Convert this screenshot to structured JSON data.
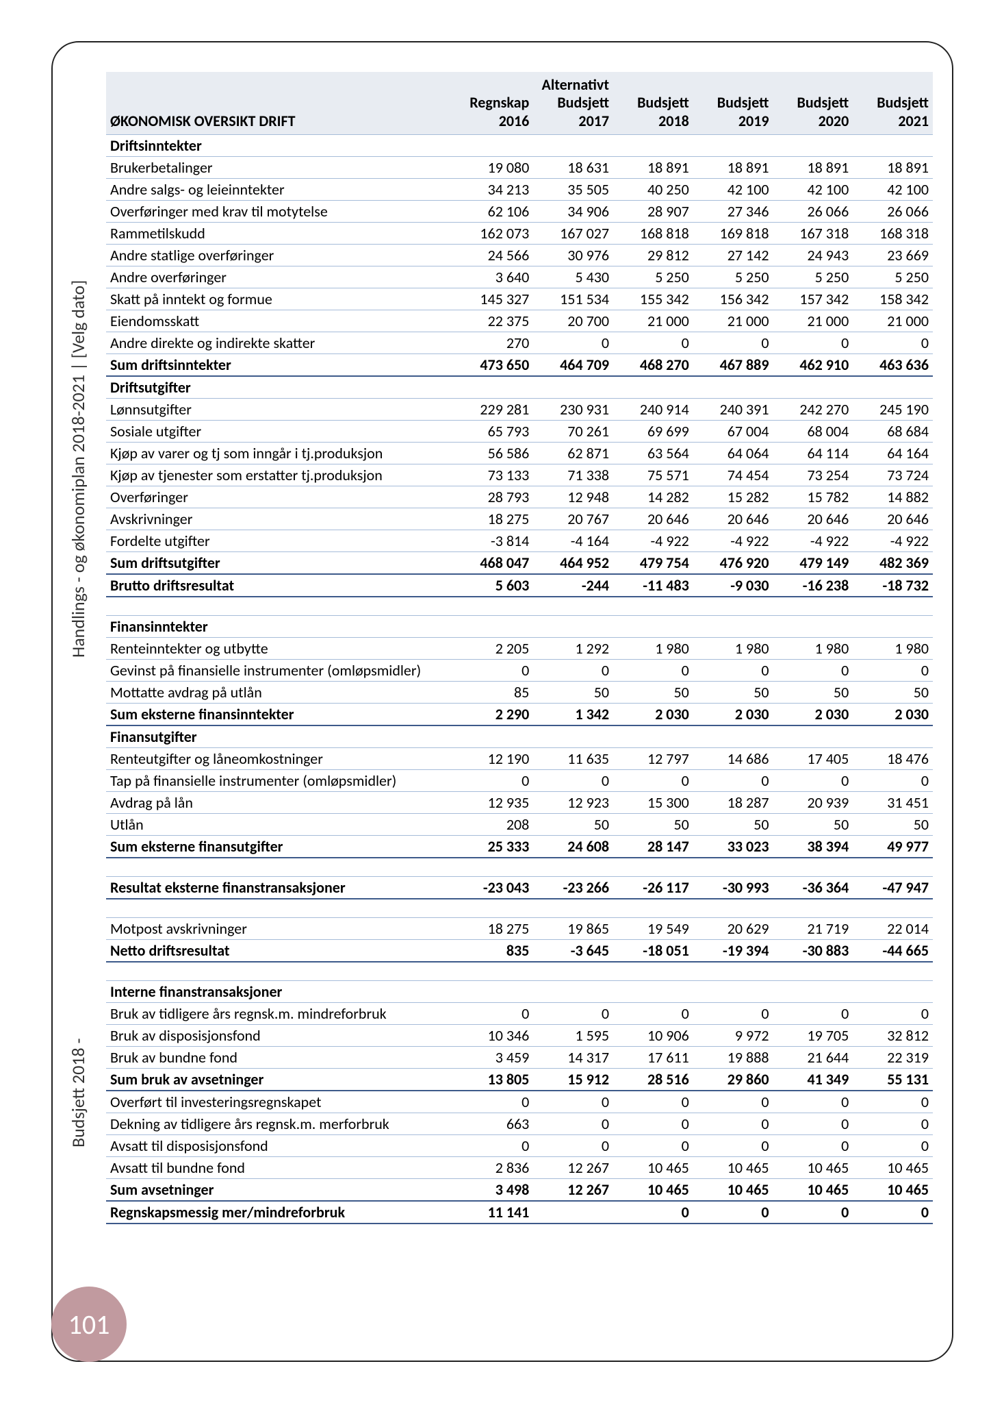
{
  "page_number": "101",
  "sidebar_text_top": "Handlings - og økonomiplan 2018-2021 |  [Velg dato]",
  "sidebar_text_bottom": "Budsjett 2018 -",
  "table": {
    "title": "ØKONOMISK OVERSIKT DRIFT",
    "columns": [
      "Regnskap\n2016",
      "Alternativt\nBudsjett\n2017",
      "Budsjett\n2018",
      "Budsjett\n2019",
      "Budsjett\n2020",
      "Budsjett\n2021"
    ],
    "col_widths_pct": [
      42,
      9.66,
      9.66,
      9.66,
      9.66,
      9.66,
      9.66
    ],
    "header_bg": "#e8ecf2",
    "grid_color": "#a6bcd9",
    "bold_border_color": "#3d5a8a",
    "font_size_pt": 11,
    "rows": [
      {
        "label": "Driftsinntekter",
        "v": [
          "",
          "",
          "",
          "",
          "",
          ""
        ],
        "bold": true
      },
      {
        "label": "Brukerbetalinger",
        "v": [
          "19 080",
          "18 631",
          "18 891",
          "18 891",
          "18 891",
          "18 891"
        ]
      },
      {
        "label": "Andre salgs- og leieinntekter",
        "v": [
          "34 213",
          "35 505",
          "40 250",
          "42 100",
          "42 100",
          "42 100"
        ]
      },
      {
        "label": "Overføringer med krav til motytelse",
        "v": [
          "62 106",
          "34 906",
          "28 907",
          "27 346",
          "26 066",
          "26 066"
        ]
      },
      {
        "label": "Rammetilskudd",
        "v": [
          "162 073",
          "167 027",
          "168 818",
          "169 818",
          "167 318",
          "168 318"
        ]
      },
      {
        "label": "Andre statlige overføringer",
        "v": [
          "24 566",
          "30 976",
          "29 812",
          "27 142",
          "24 943",
          "23 669"
        ]
      },
      {
        "label": "Andre overføringer",
        "v": [
          "3 640",
          "5 430",
          "5 250",
          "5 250",
          "5 250",
          "5 250"
        ]
      },
      {
        "label": "Skatt på inntekt og formue",
        "v": [
          "145 327",
          "151 534",
          "155 342",
          "156 342",
          "157 342",
          "158 342"
        ]
      },
      {
        "label": "Eiendomsskatt",
        "v": [
          "22 375",
          "20 700",
          "21 000",
          "21 000",
          "21 000",
          "21 000"
        ]
      },
      {
        "label": "Andre direkte og indirekte skatter",
        "v": [
          "270",
          "0",
          "0",
          "0",
          "0",
          "0"
        ]
      },
      {
        "label": "Sum driftsinntekter",
        "v": [
          "473 650",
          "464 709",
          "468 270",
          "467 889",
          "462 910",
          "463 636"
        ],
        "bold": true,
        "heavy": true
      },
      {
        "label": "Driftsutgifter",
        "v": [
          "",
          "",
          "",
          "",
          "",
          ""
        ],
        "bold": true
      },
      {
        "label": "Lønnsutgifter",
        "v": [
          "229 281",
          "230 931",
          "240 914",
          "240 391",
          "242 270",
          "245 190"
        ]
      },
      {
        "label": "Sosiale utgifter",
        "v": [
          "65 793",
          "70 261",
          "69 699",
          "67 004",
          "68 004",
          "68 684"
        ]
      },
      {
        "label": "Kjøp av varer og tj som inngår i tj.produksjon",
        "v": [
          "56 586",
          "62 871",
          "63 564",
          "64 064",
          "64 114",
          "64 164"
        ]
      },
      {
        "label": "Kjøp av tjenester som erstatter tj.produksjon",
        "v": [
          "73 133",
          "71 338",
          "75 571",
          "74 454",
          "73 254",
          "73 724"
        ]
      },
      {
        "label": "Overføringer",
        "v": [
          "28 793",
          "12 948",
          "14 282",
          "15 282",
          "15 782",
          "14 882"
        ]
      },
      {
        "label": "Avskrivninger",
        "v": [
          "18 275",
          "20 767",
          "20 646",
          "20 646",
          "20 646",
          "20 646"
        ]
      },
      {
        "label": "Fordelte utgifter",
        "v": [
          "-3 814",
          "-4 164",
          "-4 922",
          "-4 922",
          "-4 922",
          "-4 922"
        ]
      },
      {
        "label": "Sum driftsutgifter",
        "v": [
          "468 047",
          "464 952",
          "479 754",
          "476 920",
          "479 149",
          "482 369"
        ],
        "bold": true,
        "heavy": true
      },
      {
        "label": "Brutto driftsresultat",
        "v": [
          "5 603",
          "-244",
          "-11 483",
          "-9 030",
          "-16 238",
          "-18 732"
        ],
        "bold": true,
        "heavy": true
      },
      {
        "spacer": true
      },
      {
        "label": "Finansinntekter",
        "v": [
          "",
          "",
          "",
          "",
          "",
          ""
        ],
        "bold": true
      },
      {
        "label": "Renteinntekter og utbytte",
        "v": [
          "2 205",
          "1 292",
          "1 980",
          "1 980",
          "1 980",
          "1 980"
        ]
      },
      {
        "label": "Gevinst på finansielle instrumenter (omløpsmidler)",
        "v": [
          "0",
          "0",
          "0",
          "0",
          "0",
          "0"
        ]
      },
      {
        "label": "Mottatte avdrag på utlån",
        "v": [
          "85",
          "50",
          "50",
          "50",
          "50",
          "50"
        ]
      },
      {
        "label": "Sum eksterne finansinntekter",
        "v": [
          "2 290",
          "1 342",
          "2 030",
          "2 030",
          "2 030",
          "2 030"
        ],
        "bold": true,
        "heavy": true
      },
      {
        "label": "Finansutgifter",
        "v": [
          "",
          "",
          "",
          "",
          "",
          ""
        ],
        "bold": true
      },
      {
        "label": "Renteutgifter og låneomkostninger",
        "v": [
          "12 190",
          "11 635",
          "12 797",
          "14 686",
          "17 405",
          "18 476"
        ]
      },
      {
        "label": "Tap på finansielle instrumenter (omløpsmidler)",
        "v": [
          "0",
          "0",
          "0",
          "0",
          "0",
          "0"
        ]
      },
      {
        "label": "Avdrag på lån",
        "v": [
          "12 935",
          "12 923",
          "15 300",
          "18 287",
          "20 939",
          "31 451"
        ]
      },
      {
        "label": "Utlån",
        "v": [
          "208",
          "50",
          "50",
          "50",
          "50",
          "50"
        ]
      },
      {
        "label": "Sum eksterne finansutgifter",
        "v": [
          "25 333",
          "24 608",
          "28 147",
          "33 023",
          "38 394",
          "49 977"
        ],
        "bold": true,
        "heavy": true
      },
      {
        "spacer": true
      },
      {
        "label": "Resultat eksterne finanstransaksjoner",
        "v": [
          "-23 043",
          "-23 266",
          "-26 117",
          "-30 993",
          "-36 364",
          "-47 947"
        ],
        "bold": true,
        "heavy": true
      },
      {
        "spacer": true
      },
      {
        "label": "Motpost avskrivninger",
        "v": [
          "18 275",
          "19 865",
          "19 549",
          "20 629",
          "21 719",
          "22 014"
        ]
      },
      {
        "label": "Netto driftsresultat",
        "v": [
          "835",
          "-3 645",
          "-18 051",
          "-19 394",
          "-30 883",
          "-44 665"
        ],
        "bold": true,
        "heavy": true
      },
      {
        "spacer": true
      },
      {
        "label": "Interne finanstransaksjoner",
        "v": [
          "",
          "",
          "",
          "",
          "",
          ""
        ],
        "bold": true
      },
      {
        "label": "Bruk av tidligere års regnsk.m. mindreforbruk",
        "v": [
          "0",
          "0",
          "0",
          "0",
          "0",
          "0"
        ]
      },
      {
        "label": "Bruk av disposisjonsfond",
        "v": [
          "10 346",
          "1 595",
          "10 906",
          "9 972",
          "19 705",
          "32 812"
        ]
      },
      {
        "label": "Bruk av bundne fond",
        "v": [
          "3 459",
          "14 317",
          "17 611",
          "19 888",
          "21 644",
          "22 319"
        ]
      },
      {
        "label": "Sum bruk av avsetninger",
        "v": [
          "13 805",
          "15 912",
          "28 516",
          "29 860",
          "41 349",
          "55 131"
        ],
        "bold": true,
        "heavy": true
      },
      {
        "label": "Overført til investeringsregnskapet",
        "v": [
          "0",
          "0",
          "0",
          "0",
          "0",
          "0"
        ]
      },
      {
        "label": "Dekning av tidligere års regnsk.m. merforbruk",
        "v": [
          "663",
          "0",
          "0",
          "0",
          "0",
          "0"
        ]
      },
      {
        "label": "Avsatt til disposisjonsfond",
        "v": [
          "0",
          "0",
          "0",
          "0",
          "0",
          "0"
        ]
      },
      {
        "label": "Avsatt til bundne fond",
        "v": [
          "2 836",
          "12 267",
          "10 465",
          "10 465",
          "10 465",
          "10 465"
        ]
      },
      {
        "label": "Sum avsetninger",
        "v": [
          "3 498",
          "12 267",
          "10 465",
          "10 465",
          "10 465",
          "10 465"
        ],
        "bold": true,
        "heavy": true
      },
      {
        "label": "Regnskapsmessig mer/mindreforbruk",
        "v": [
          "11 141",
          "",
          "0",
          "0",
          "0",
          "0"
        ],
        "bold": true,
        "heavy": true
      }
    ]
  }
}
